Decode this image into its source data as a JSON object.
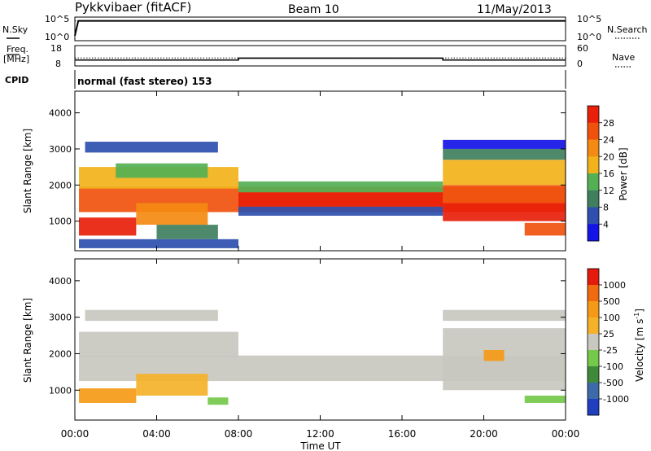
{
  "header": {
    "station": "Pykkvibaer (fitACF)",
    "beam": "Beam 10",
    "date": "11/May/2013"
  },
  "side_labels": {
    "nsky": "N.Sky",
    "nsearch": "N.Search",
    "freq_line1": "Freq.",
    "freq_line2": "[MHz]",
    "nave": "Nave",
    "cpid": "CPID",
    "noise_tick_top": "10^5",
    "noise_tick_bottom": "10^0",
    "noise_tick_top_right": "10^5",
    "noise_tick_bottom_right": "10^0",
    "freq_tick_top": "18",
    "freq_tick_bottom": "8",
    "nave_tick_top": "60",
    "nave_tick_bottom": "0"
  },
  "cpid_text": "normal (fast stereo) 153",
  "chart_data": [
    {
      "type": "line",
      "panel": "noise",
      "series": [
        {
          "name": "N.Sky",
          "x": [
            "00:00",
            "00:10",
            "04:00",
            "08:00",
            "12:00",
            "16:00",
            "18:00",
            "20:00",
            "24:00"
          ],
          "values": [
            10,
            31622,
            31622,
            31622,
            31622,
            31622,
            31622,
            31622,
            31622
          ]
        },
        {
          "name": "N.Search",
          "x": [
            "00:00",
            "24:00"
          ],
          "values": [
            31622,
            31622
          ]
        }
      ],
      "ylim_log": [
        1,
        100000
      ]
    },
    {
      "type": "line",
      "panel": "frequency",
      "series": [
        {
          "name": "Freq.",
          "x": [
            "00:00",
            "00:10",
            "08:00",
            "08:00",
            "18:00",
            "18:00",
            "24:00"
          ],
          "values": [
            10.5,
            10.5,
            10.5,
            11.6,
            11.6,
            10.5,
            10.5
          ]
        },
        {
          "name": "Nave",
          "x": [
            "00:00",
            "24:00"
          ],
          "values": [
            22,
            22
          ]
        }
      ],
      "ylim_left": [
        8,
        18
      ],
      "ylim_right": [
        0,
        60
      ]
    },
    {
      "type": "heatmap",
      "panel": "power",
      "title": "",
      "xlabel": "",
      "ylabel": "Slant Range [km]",
      "x_ticks": [
        "00:00",
        "04:00",
        "08:00",
        "12:00",
        "16:00",
        "20:00",
        "00:00"
      ],
      "xlim_hours": [
        0,
        24
      ],
      "ylim": [
        180,
        4600
      ],
      "y_ticks": [
        1000,
        2000,
        3000,
        4000
      ],
      "colorbar": {
        "label": "Power [dB]",
        "ticks": [
          "4",
          "8",
          "12",
          "16",
          "20",
          "24",
          "28"
        ],
        "colors": [
          "#1414e6",
          "#2e4fae",
          "#3f7f5e",
          "#55b055",
          "#f2b21a",
          "#f58a12",
          "#f0520e",
          "#e8200a"
        ]
      },
      "regions": [
        {
          "t0": 0.2,
          "t1": 24,
          "r0": 1250,
          "r1": 1950,
          "level": 6
        },
        {
          "t0": 0.2,
          "t1": 3,
          "r0": 600,
          "r1": 1100,
          "level": 7
        },
        {
          "t0": 3,
          "t1": 6.5,
          "r0": 900,
          "r1": 1500,
          "level": 5
        },
        {
          "t0": 0.2,
          "t1": 8,
          "r0": 1900,
          "r1": 2500,
          "level": 4
        },
        {
          "t0": 2,
          "t1": 6.5,
          "r0": 2200,
          "r1": 2600,
          "level": 3
        },
        {
          "t0": 4,
          "t1": 7,
          "r0": 500,
          "r1": 900,
          "level": 2
        },
        {
          "t0": 8,
          "t1": 18,
          "r0": 1400,
          "r1": 1800,
          "level": 7
        },
        {
          "t0": 8,
          "t1": 18,
          "r0": 1800,
          "r1": 2100,
          "level": 3
        },
        {
          "t0": 8,
          "t1": 18,
          "r0": 1150,
          "r1": 1400,
          "level": 1
        },
        {
          "t0": 18,
          "t1": 24,
          "r0": 1000,
          "r1": 1500,
          "level": 7
        },
        {
          "t0": 18,
          "t1": 24,
          "r0": 1500,
          "r1": 2000,
          "level": 6
        },
        {
          "t0": 18,
          "t1": 24,
          "r0": 2000,
          "r1": 2700,
          "level": 4
        },
        {
          "t0": 18,
          "t1": 24,
          "r0": 2700,
          "r1": 3000,
          "level": 2
        },
        {
          "t0": 22,
          "t1": 24,
          "r0": 600,
          "r1": 950,
          "level": 6
        },
        {
          "t0": 0.5,
          "t1": 7,
          "r0": 2900,
          "r1": 3200,
          "level": 1
        },
        {
          "t0": 18,
          "t1": 24,
          "r0": 3000,
          "r1": 3250,
          "level": 0
        },
        {
          "t0": 0.2,
          "t1": 8,
          "r0": 250,
          "r1": 500,
          "level": 1
        }
      ]
    },
    {
      "type": "heatmap",
      "panel": "velocity",
      "title": "",
      "xlabel": "Time UT",
      "ylabel": "Slant Range [km]",
      "x_ticks": [
        "00:00",
        "04:00",
        "08:00",
        "12:00",
        "16:00",
        "20:00",
        "00:00"
      ],
      "xlim_hours": [
        0,
        24
      ],
      "ylim": [
        180,
        4600
      ],
      "y_ticks": [
        1000,
        2000,
        3000,
        4000
      ],
      "colorbar": {
        "label": "Velocity [m s^-1]",
        "ticks": [
          "1000",
          "500",
          "100",
          "25",
          "-25",
          "-100",
          "-500",
          "-1000"
        ],
        "colors": [
          "#1f3fbf",
          "#3d6aa8",
          "#3f8a3a",
          "#74c84a",
          "#c8c8c0",
          "#f5b229",
          "#f59a17",
          "#f06a10",
          "#e41a0c"
        ]
      },
      "regions": [
        {
          "t0": 0.2,
          "t1": 24,
          "r0": 1250,
          "r1": 1950,
          "level": 4
        },
        {
          "t0": 0.2,
          "t1": 8,
          "r0": 1900,
          "r1": 2600,
          "level": 4
        },
        {
          "t0": 18,
          "t1": 24,
          "r0": 1000,
          "r1": 2700,
          "level": 4
        },
        {
          "t0": 0.2,
          "t1": 3,
          "r0": 650,
          "r1": 1050,
          "level": 6
        },
        {
          "t0": 3,
          "t1": 6.5,
          "r0": 850,
          "r1": 1450,
          "level": 5
        },
        {
          "t0": 6.5,
          "t1": 7.5,
          "r0": 600,
          "r1": 800,
          "level": 3
        },
        {
          "t0": 22,
          "t1": 24,
          "r0": 650,
          "r1": 850,
          "level": 3
        },
        {
          "t0": 20,
          "t1": 21,
          "r0": 1800,
          "r1": 2100,
          "level": 6
        },
        {
          "t0": 0.5,
          "t1": 7,
          "r0": 2900,
          "r1": 3200,
          "level": 4
        },
        {
          "t0": 18,
          "t1": 24,
          "r0": 2900,
          "r1": 3200,
          "level": 4
        }
      ]
    }
  ]
}
